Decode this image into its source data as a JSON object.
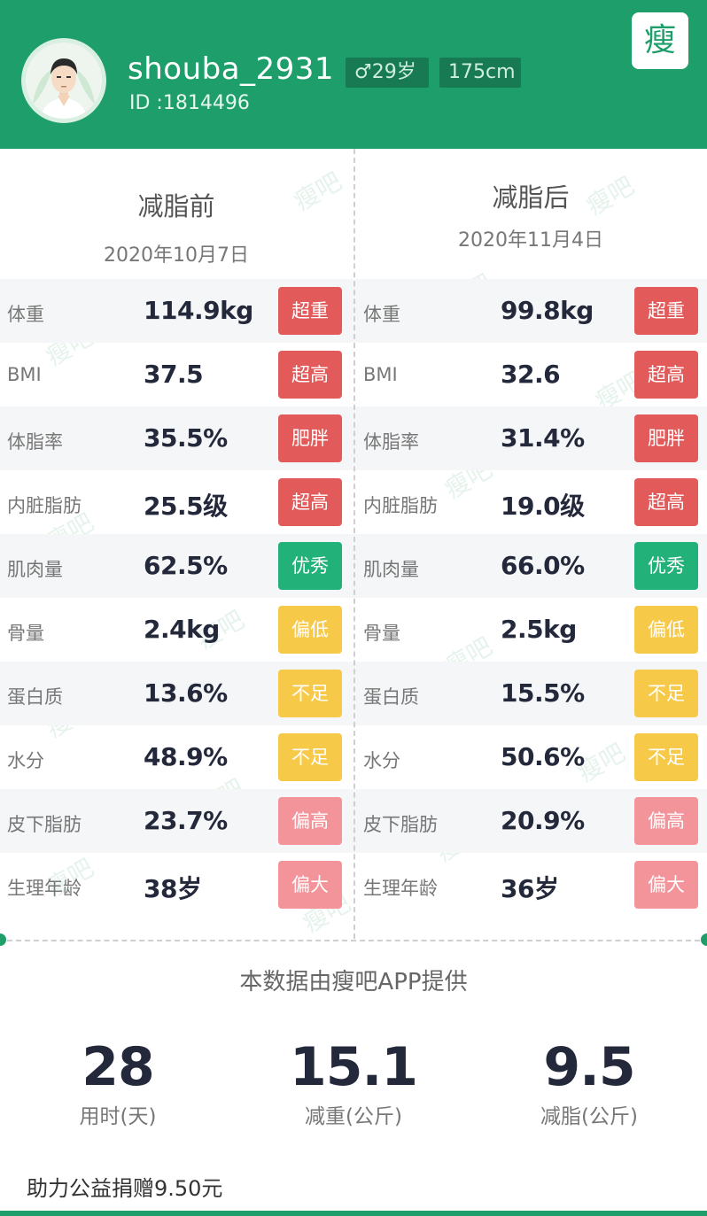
{
  "header": {
    "username": "shouba_2931",
    "user_id": "ID :1814496",
    "gender_age": "♂29岁",
    "height": "175cm",
    "logo_text": "瘦吧",
    "brand_color": "#1d9e6a"
  },
  "before": {
    "title": "减脂前",
    "date": "2020年10月7日"
  },
  "after": {
    "title": "减脂后",
    "date": "2020年11月4日"
  },
  "watermark_text": "瘦吧",
  "metrics": [
    {
      "label": "体重",
      "before_value": "114.9kg",
      "before_status": "超重",
      "after_value": "99.8kg",
      "after_status": "超重",
      "before_color": "#e35a5a",
      "after_color": "#e35a5a"
    },
    {
      "label": "BMI",
      "before_value": "37.5",
      "before_status": "超高",
      "after_value": "32.6",
      "after_status": "超高",
      "before_color": "#e35a5a",
      "after_color": "#e35a5a"
    },
    {
      "label": "体脂率",
      "before_value": "35.5%",
      "before_status": "肥胖",
      "after_value": "31.4%",
      "after_status": "肥胖",
      "before_color": "#e35a5a",
      "after_color": "#e35a5a"
    },
    {
      "label": "内脏脂肪",
      "before_value": "25.5级",
      "before_status": "超高",
      "after_value": "19.0级",
      "after_status": "超高",
      "before_color": "#e35a5a",
      "after_color": "#e35a5a"
    },
    {
      "label": "肌肉量",
      "before_value": "62.5%",
      "before_status": "优秀",
      "after_value": "66.0%",
      "after_status": "优秀",
      "before_color": "#22b179",
      "after_color": "#22b179"
    },
    {
      "label": "骨量",
      "before_value": "2.4kg",
      "before_status": "偏低",
      "after_value": "2.5kg",
      "after_status": "偏低",
      "before_color": "#f7c948",
      "after_color": "#f7c948"
    },
    {
      "label": "蛋白质",
      "before_value": "13.6%",
      "before_status": "不足",
      "after_value": "15.5%",
      "after_status": "不足",
      "before_color": "#f7c948",
      "after_color": "#f7c948"
    },
    {
      "label": "水分",
      "before_value": "48.9%",
      "before_status": "不足",
      "after_value": "50.6%",
      "after_status": "不足",
      "before_color": "#f7c948",
      "after_color": "#f7c948"
    },
    {
      "label": "皮下脂肪",
      "before_value": "23.7%",
      "before_status": "偏高",
      "after_value": "20.9%",
      "after_status": "偏高",
      "before_color": "#f3949b",
      "after_color": "#f3949b"
    },
    {
      "label": "生理年龄",
      "before_value": "38岁",
      "before_status": "偏大",
      "after_value": "36岁",
      "after_status": "偏大",
      "before_color": "#f3949b",
      "after_color": "#f3949b"
    }
  ],
  "provider_text": "本数据由瘦吧APP提供",
  "stats": [
    {
      "value": "28",
      "label": "用时(天)"
    },
    {
      "value": "15.1",
      "label": "减重(公斤)"
    },
    {
      "value": "9.5",
      "label": "减脂(公斤)"
    }
  ],
  "donation_text": "助力公益捐赠9.50元"
}
